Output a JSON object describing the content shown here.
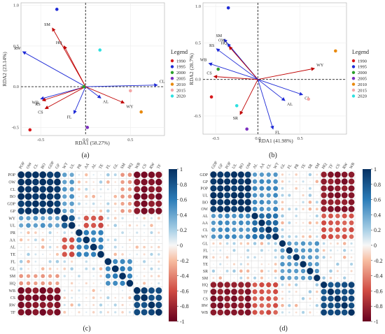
{
  "chart_data": [
    {
      "panel": "(a)",
      "type": "scatter",
      "subtype": "rda-biplot",
      "xlabel": "RDA1 (58.27%)",
      "ylabel": "RDA2 (23.14%)",
      "xlim": [
        -0.72,
        0.88
      ],
      "ylim": [
        -0.6,
        1.03
      ],
      "xticks": [
        -0.5,
        0.0,
        0.5
      ],
      "yticks": [
        -0.5,
        0.0,
        0.5,
        1.0
      ],
      "tick_labels_x": [
        "-0.5",
        "0.0",
        "0.5"
      ],
      "tick_labels_y": [
        "-0.5",
        "0.0",
        "0.5",
        "1.0"
      ],
      "legend_title": "Legend",
      "legend_position": "right",
      "points": [
        {
          "label": "1990",
          "x": -0.62,
          "y": -0.53,
          "color": "#d7191c"
        },
        {
          "label": "1995",
          "x": -0.32,
          "y": 0.95,
          "color": "#1f2bd6"
        },
        {
          "label": "2000",
          "x": -0.02,
          "y": 0.0,
          "color": "#2ca02c"
        },
        {
          "label": "2005",
          "x": 0.02,
          "y": -0.5,
          "color": "#7b2fbf"
        },
        {
          "label": "2010",
          "x": 0.62,
          "y": -0.31,
          "color": "#e8890c"
        },
        {
          "label": "2015",
          "x": 0.5,
          "y": -0.05,
          "color": "#f4a6a6"
        },
        {
          "label": "2020",
          "x": 0.16,
          "y": 0.45,
          "color": "#2ee0e0"
        }
      ],
      "arrows": [
        {
          "label": "SM",
          "x": -0.37,
          "y": 0.72,
          "color": "#c00000"
        },
        {
          "label": "HQ",
          "x": -0.24,
          "y": 0.5,
          "color": "#c00000"
        },
        {
          "label": "RW",
          "x": -0.7,
          "y": 0.43,
          "color": "#1f2bd6"
        },
        {
          "label": "CL",
          "x": 0.8,
          "y": 0.02,
          "color": "#1f2bd6"
        },
        {
          "label": "AL",
          "x": 0.17,
          "y": -0.14,
          "color": "#1f2bd6"
        },
        {
          "label": "WY",
          "x": 0.43,
          "y": -0.2,
          "color": "#c00000"
        },
        {
          "label": "FL",
          "x": -0.13,
          "y": -0.33,
          "color": "#1f2bd6"
        },
        {
          "label": "CS",
          "x": -0.45,
          "y": -0.27,
          "color": "#c00000"
        },
        {
          "label": "WB",
          "x": -0.5,
          "y": -0.15,
          "color": "#1f2bd6"
        },
        {
          "label": "RS",
          "x": -0.48,
          "y": -0.17,
          "color": "#c00000"
        }
      ]
    },
    {
      "panel": "(b)",
      "type": "scatter",
      "subtype": "rda-biplot",
      "xlabel": "RDA1 (41.98%)",
      "ylabel": "RDA2 (28.7%)",
      "xlim": [
        -0.65,
        1.05
      ],
      "ylim": [
        -0.75,
        1.05
      ],
      "xticks": [
        -0.5,
        0.0,
        0.5
      ],
      "yticks": [
        -0.5,
        0.0,
        0.5,
        1.0
      ],
      "tick_labels_x": [
        "-0.5",
        "0.0",
        "0.5"
      ],
      "tick_labels_y": [
        "-0.5",
        "0.0",
        "0.5",
        "1.0"
      ],
      "legend_title": "Legend",
      "legend_position": "right",
      "points": [
        {
          "label": "1990",
          "x": -0.55,
          "y": -0.24,
          "color": "#d7191c"
        },
        {
          "label": "1995",
          "x": -0.35,
          "y": 0.98,
          "color": "#1f2bd6"
        },
        {
          "label": "2000",
          "x": -0.47,
          "y": 0.14,
          "color": "#2ca02c"
        },
        {
          "label": "2005",
          "x": -0.13,
          "y": -0.68,
          "color": "#7b2fbf"
        },
        {
          "label": "2010",
          "x": 0.92,
          "y": 0.39,
          "color": "#e8890c"
        },
        {
          "label": "2015",
          "x": 0.6,
          "y": -0.27,
          "color": "#f4a6a6"
        },
        {
          "label": "2020",
          "x": -0.25,
          "y": -0.36,
          "color": "#2ee0e0"
        }
      ],
      "arrows": [
        {
          "label": "SM",
          "x": -0.4,
          "y": 0.55,
          "color": "#1f2bd6"
        },
        {
          "label": "OW",
          "x": -0.36,
          "y": 0.49,
          "color": "#1f2bd6"
        },
        {
          "label": "HQ",
          "x": -0.34,
          "y": 0.45,
          "color": "#c00000"
        },
        {
          "label": "RS",
          "x": -0.49,
          "y": 0.42,
          "color": "#1f2bd6"
        },
        {
          "label": "WB",
          "x": -0.58,
          "y": 0.22,
          "color": "#1f2bd6"
        },
        {
          "label": "CS",
          "x": -0.52,
          "y": 0.04,
          "color": "#c00000"
        },
        {
          "label": "WY",
          "x": 0.67,
          "y": 0.15,
          "color": "#c00000"
        },
        {
          "label": "CL",
          "x": 0.53,
          "y": -0.21,
          "color": "#1f2bd6"
        },
        {
          "label": "AL",
          "x": 0.32,
          "y": -0.29,
          "color": "#1f2bd6"
        },
        {
          "label": "SR",
          "x": -0.21,
          "y": -0.48,
          "color": "#c00000"
        },
        {
          "label": "FL",
          "x": 0.18,
          "y": -0.68,
          "color": "#1f2bd6"
        }
      ]
    },
    {
      "panel": "(c)",
      "type": "heatmap",
      "subtype": "correlation-circles",
      "labels": [
        "POP",
        "OW",
        "CL",
        "BO",
        "GDP",
        "GP",
        "WY",
        "UL",
        "PR",
        "AA",
        "AL",
        "TE",
        "FL",
        "GL",
        "SM",
        "HQ",
        "WB",
        "CS",
        "RW",
        "TF"
      ],
      "colorbar_ticks": [
        "1",
        "0.8",
        "0.6",
        "0.4",
        "0.2",
        "0",
        "-0.2",
        "-0.4",
        "-0.6",
        "-0.8",
        "-1"
      ],
      "blocks": [
        {
          "rows": [
            0,
            5
          ],
          "cols": [
            0,
            5
          ],
          "value": 0.97
        },
        {
          "rows": [
            0,
            5
          ],
          "cols": [
            16,
            19
          ],
          "value": -0.9
        },
        {
          "rows": [
            0,
            5
          ],
          "cols": [
            6,
            7
          ],
          "value": 0.45
        },
        {
          "rows": [
            0,
            5
          ],
          "cols": [
            14,
            15
          ],
          "value": -0.35
        },
        {
          "rows": [
            16,
            19
          ],
          "cols": [
            16,
            19
          ],
          "value": 0.88
        },
        {
          "rows": [
            6,
            7
          ],
          "cols": [
            6,
            7
          ],
          "value": 0.8
        },
        {
          "rows": [
            8,
            11
          ],
          "cols": [
            8,
            11
          ],
          "value": 0.6
        },
        {
          "rows": [
            12,
            15
          ],
          "cols": [
            12,
            15
          ],
          "value": 0.55
        },
        {
          "rows": [
            6,
            9
          ],
          "cols": [
            9,
            11
          ],
          "value": -0.6
        }
      ]
    },
    {
      "panel": "(d)",
      "type": "heatmap",
      "subtype": "correlation-circles",
      "labels": [
        "GDP",
        "GP",
        "POP",
        "UL",
        "BO",
        "OW",
        "AL",
        "AA",
        "CL",
        "WY",
        "GL",
        "FL",
        "PR",
        "TE",
        "SR",
        "SM",
        "HQ",
        "TF",
        "CS",
        "RW",
        "WB"
      ],
      "colorbar_ticks": [
        "1",
        "0.8",
        "0.6",
        "0.4",
        "0.2",
        "0",
        "-0.2",
        "-0.4",
        "-0.6",
        "-0.8",
        "-1"
      ],
      "blocks": [
        {
          "rows": [
            0,
            5
          ],
          "cols": [
            0,
            5
          ],
          "value": 0.97
        },
        {
          "rows": [
            0,
            5
          ],
          "cols": [
            16,
            20
          ],
          "value": -0.88
        },
        {
          "rows": [
            0,
            5
          ],
          "cols": [
            6,
            9
          ],
          "value": 0.5
        },
        {
          "rows": [
            16,
            20
          ],
          "cols": [
            16,
            20
          ],
          "value": 0.85
        },
        {
          "rows": [
            6,
            9
          ],
          "cols": [
            6,
            9
          ],
          "value": 0.7
        },
        {
          "rows": [
            10,
            15
          ],
          "cols": [
            10,
            15
          ],
          "value": 0.45
        },
        {
          "rows": [
            6,
            9
          ],
          "cols": [
            16,
            20
          ],
          "value": -0.55
        }
      ]
    }
  ]
}
